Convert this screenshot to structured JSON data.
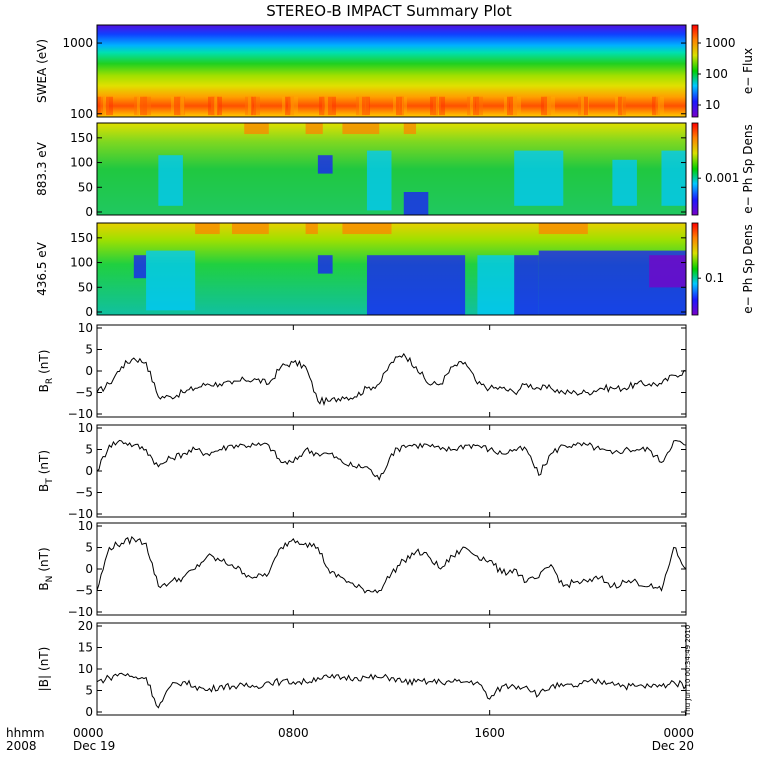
{
  "title": "STEREO-B IMPACT Summary Plot",
  "time_axis": {
    "row_label_1": "hhmm",
    "row_label_2": "2008",
    "ticks": [
      {
        "label": "0000",
        "sub": "Dec 19",
        "hour": 0
      },
      {
        "label": "0800",
        "sub": "",
        "hour": 8
      },
      {
        "label": "1600",
        "sub": "",
        "hour": 16
      },
      {
        "label": "0000",
        "sub": "Dec 20",
        "hour": 24
      }
    ],
    "range_hours": [
      0,
      24
    ]
  },
  "timestamp": "Thu Jun 10 00:34:49 2010",
  "colors": {
    "colormap": [
      "#7a00c8",
      "#1a1aff",
      "#00c8ff",
      "#00d000",
      "#d8e000",
      "#ff8000",
      "#ff0000"
    ],
    "line": "#000000",
    "frame": "#000000"
  },
  "spectrograms": [
    {
      "id": "swea",
      "ylabel": "SWEA (eV)",
      "yticks": [
        "1000",
        "100"
      ],
      "ylog": true,
      "yrange": [
        90,
        1800
      ],
      "cbar_label": "e− Flux",
      "cbar_ticks": [
        "1000",
        "100",
        "10"
      ]
    },
    {
      "id": "pad883",
      "ylabel": "883.3 eV",
      "yticks": [
        "150",
        "100",
        "50",
        "0"
      ],
      "ylog": false,
      "yrange": [
        0,
        180
      ],
      "cbar_label": "e− Ph Sp Dens",
      "cbar_ticks": [
        "0.001"
      ]
    },
    {
      "id": "pad436",
      "ylabel": "436.5 eV",
      "yticks": [
        "150",
        "100",
        "50",
        "0"
      ],
      "ylog": false,
      "yrange": [
        0,
        180
      ],
      "cbar_label": "e− Ph Sp Dens",
      "cbar_ticks": [
        "0.1"
      ]
    }
  ],
  "chart_data": [
    {
      "type": "line",
      "id": "br",
      "ylabel_main": "B",
      "ylabel_sub": "R",
      "ylabel_unit": "(nT)",
      "yticks": [
        "10",
        "5",
        "0",
        "−5",
        "−10"
      ],
      "ylim": [
        -10,
        10
      ],
      "x": [
        0,
        0.5,
        1,
        1.5,
        2,
        2.5,
        3,
        3.5,
        4,
        4.5,
        5,
        5.5,
        6,
        6.5,
        7,
        7.5,
        8,
        8.5,
        9,
        9.5,
        10,
        10.5,
        11,
        11.5,
        12,
        12.5,
        13,
        13.5,
        14,
        14.5,
        15,
        15.5,
        16,
        16.5,
        17,
        17.5,
        18,
        18.5,
        19,
        19.5,
        20,
        20.5,
        21,
        21.5,
        22,
        22.5,
        23,
        23.5,
        24
      ],
      "values": [
        -5,
        -3,
        1,
        3,
        2,
        -6,
        -6,
        -5,
        -4,
        -3,
        -3,
        -3,
        -2,
        -2,
        -3,
        1,
        2,
        1,
        -7,
        -7,
        -6,
        -6,
        -4,
        -3,
        2,
        4,
        1,
        -3,
        -3,
        1,
        2,
        -3,
        -4,
        -4,
        -5,
        -3,
        -4,
        -4,
        -5,
        -5,
        -5,
        -4,
        -4,
        -4,
        -3,
        -3,
        -3,
        -1,
        0
      ]
    },
    {
      "type": "line",
      "id": "bt",
      "ylabel_main": "B",
      "ylabel_sub": "T",
      "ylabel_unit": "(nT)",
      "yticks": [
        "10",
        "5",
        "0",
        "−5",
        "−10"
      ],
      "ylim": [
        -10,
        10
      ],
      "x": [
        0,
        0.5,
        1,
        1.5,
        2,
        2.5,
        3,
        3.5,
        4,
        4.5,
        5,
        5.5,
        6,
        6.5,
        7,
        7.5,
        8,
        8.5,
        9,
        9.5,
        10,
        10.5,
        11,
        11.5,
        12,
        12.5,
        13,
        13.5,
        14,
        14.5,
        15,
        15.5,
        16,
        16.5,
        17,
        17.5,
        18,
        18.5,
        19,
        19.5,
        20,
        20.5,
        21,
        21.5,
        22,
        22.5,
        23,
        23.5,
        24
      ],
      "values": [
        0,
        6,
        7,
        6,
        5,
        1,
        3,
        4,
        5,
        4,
        5,
        6,
        6,
        6,
        6,
        2,
        2,
        5,
        4,
        4,
        2,
        1,
        1,
        -2,
        4,
        6,
        6,
        6,
        5,
        5,
        6,
        6,
        5,
        4,
        5,
        5,
        -1,
        4,
        6,
        6,
        6,
        5,
        4,
        5,
        5,
        5,
        2,
        7,
        6
      ]
    },
    {
      "type": "line",
      "id": "bn",
      "ylabel_main": "B",
      "ylabel_sub": "N",
      "ylabel_unit": "(nT)",
      "yticks": [
        "10",
        "5",
        "0",
        "−5",
        "−10"
      ],
      "ylim": [
        -10,
        10
      ],
      "x": [
        0,
        0.5,
        1,
        1.5,
        2,
        2.5,
        3,
        3.5,
        4,
        4.5,
        5,
        5.5,
        6,
        6.5,
        7,
        7.5,
        8,
        8.5,
        9,
        9.5,
        10,
        10.5,
        11,
        11.5,
        12,
        12.5,
        13,
        13.5,
        14,
        14.5,
        15,
        15.5,
        16,
        16.5,
        17,
        17.5,
        18,
        18.5,
        19,
        19.5,
        20,
        20.5,
        21,
        21.5,
        22,
        22.5,
        23,
        23.5,
        24
      ],
      "values": [
        -5,
        5,
        6,
        7,
        6,
        -4,
        -3,
        -2,
        0,
        3,
        2,
        1,
        -1,
        -2,
        -1,
        5,
        7,
        6,
        5,
        -1,
        -2,
        -4,
        -5,
        -5,
        -1,
        2,
        4,
        3,
        0,
        3,
        5,
        3,
        2,
        -1,
        0,
        -3,
        -2,
        1,
        -4,
        -3,
        -3,
        -2,
        -4,
        -3,
        -3,
        -4,
        -5,
        5,
        0
      ]
    },
    {
      "type": "line",
      "id": "bmag",
      "ylabel_main": "|B|",
      "ylabel_sub": "",
      "ylabel_unit": "(nT)",
      "yticks": [
        "20",
        "15",
        "10",
        "5",
        "0"
      ],
      "ylim": [
        0,
        20
      ],
      "x": [
        0,
        0.5,
        1,
        1.5,
        2,
        2.5,
        3,
        3.5,
        4,
        4.5,
        5,
        5.5,
        6,
        6.5,
        7,
        7.5,
        8,
        8.5,
        9,
        9.5,
        10,
        10.5,
        11,
        11.5,
        12,
        12.5,
        13,
        13.5,
        14,
        14.5,
        15,
        15.5,
        16,
        16.5,
        17,
        17.5,
        18,
        18.5,
        19,
        19.5,
        20,
        20.5,
        21,
        21.5,
        22,
        22.5,
        23,
        23.5,
        24
      ],
      "values": [
        7,
        8,
        9,
        8,
        8,
        1,
        6,
        7,
        6,
        5,
        6,
        6,
        6,
        6,
        7,
        7,
        7,
        7,
        8,
        8,
        8,
        8,
        8,
        8,
        8,
        7,
        7,
        7,
        7,
        7,
        7,
        7,
        3,
        6,
        6,
        6,
        4,
        6,
        6,
        6,
        7,
        7,
        7,
        6,
        6,
        6,
        6,
        7,
        6
      ]
    }
  ]
}
